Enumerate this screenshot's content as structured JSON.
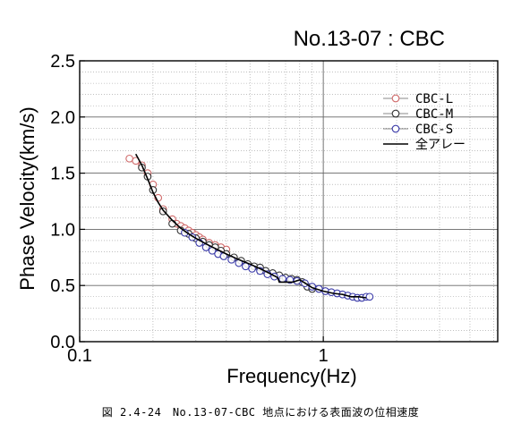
{
  "chart_data": {
    "type": "scatter",
    "title": "No.13-07 : CBC",
    "xlabel": "Frequency(Hz)",
    "ylabel": "Phase Velocity(km/s)",
    "xscale": "log",
    "xlim": [
      0.1,
      5.2
    ],
    "ylim": [
      0.0,
      2.5
    ],
    "x_ticks": [
      {
        "value": 0.1,
        "label": "0.1"
      },
      {
        "value": 1,
        "label": "1"
      }
    ],
    "y_ticks": [
      {
        "value": 0.0,
        "label": "0.0"
      },
      {
        "value": 0.5,
        "label": "0.5"
      },
      {
        "value": 1.0,
        "label": "1.0"
      },
      {
        "value": 1.5,
        "label": "1.5"
      },
      {
        "value": 2.0,
        "label": "2.0"
      },
      {
        "value": 2.5,
        "label": "2.5"
      }
    ],
    "grid": true,
    "legend_position": "top-right",
    "series": [
      {
        "name": "CBC-L",
        "marker": "circle",
        "color": "#d06a6a",
        "points": [
          [
            0.16,
            1.63
          ],
          [
            0.17,
            1.61
          ],
          [
            0.18,
            1.57
          ],
          [
            0.19,
            1.5
          ],
          [
            0.2,
            1.4
          ],
          [
            0.21,
            1.28
          ],
          [
            0.22,
            1.18
          ],
          [
            0.24,
            1.09
          ],
          [
            0.25,
            1.05
          ],
          [
            0.26,
            1.03
          ],
          [
            0.27,
            1.01
          ],
          [
            0.28,
            0.99
          ],
          [
            0.29,
            0.97
          ],
          [
            0.3,
            0.95
          ],
          [
            0.31,
            0.93
          ],
          [
            0.32,
            0.91
          ],
          [
            0.34,
            0.88
          ],
          [
            0.36,
            0.86
          ],
          [
            0.38,
            0.84
          ],
          [
            0.4,
            0.82
          ]
        ]
      },
      {
        "name": "CBC-M",
        "marker": "circle",
        "color": "#333333",
        "points": [
          [
            0.18,
            1.55
          ],
          [
            0.19,
            1.47
          ],
          [
            0.2,
            1.35
          ],
          [
            0.22,
            1.16
          ],
          [
            0.24,
            1.05
          ],
          [
            0.26,
            0.99
          ],
          [
            0.28,
            0.96
          ],
          [
            0.3,
            0.92
          ],
          [
            0.32,
            0.89
          ],
          [
            0.34,
            0.86
          ],
          [
            0.36,
            0.84
          ],
          [
            0.38,
            0.81
          ],
          [
            0.4,
            0.78
          ],
          [
            0.43,
            0.75
          ],
          [
            0.46,
            0.72
          ],
          [
            0.49,
            0.69
          ],
          [
            0.52,
            0.67
          ],
          [
            0.55,
            0.66
          ],
          [
            0.58,
            0.63
          ],
          [
            0.62,
            0.61
          ],
          [
            0.66,
            0.59
          ],
          [
            0.7,
            0.57
          ],
          [
            0.74,
            0.56
          ],
          [
            0.78,
            0.55
          ],
          [
            0.82,
            0.53
          ],
          [
            0.86,
            0.49
          ],
          [
            0.9,
            0.47
          ]
        ]
      },
      {
        "name": "CBC-S",
        "marker": "circle",
        "color": "#3a3aa8",
        "points": [
          [
            0.27,
            0.97
          ],
          [
            0.29,
            0.93
          ],
          [
            0.31,
            0.88
          ],
          [
            0.33,
            0.84
          ],
          [
            0.35,
            0.81
          ],
          [
            0.37,
            0.78
          ],
          [
            0.39,
            0.76
          ],
          [
            0.42,
            0.73
          ],
          [
            0.45,
            0.7
          ],
          [
            0.48,
            0.67
          ],
          [
            0.51,
            0.65
          ],
          [
            0.55,
            0.63
          ],
          [
            0.59,
            0.6
          ],
          [
            0.63,
            0.58
          ],
          [
            0.68,
            0.56
          ],
          [
            0.73,
            0.55
          ],
          [
            0.78,
            0.54
          ],
          [
            0.84,
            0.52
          ],
          [
            0.9,
            0.49
          ],
          [
            0.96,
            0.47
          ],
          [
            1.02,
            0.45
          ],
          [
            1.08,
            0.44
          ],
          [
            1.14,
            0.43
          ],
          [
            1.2,
            0.42
          ],
          [
            1.26,
            0.41
          ],
          [
            1.32,
            0.4
          ],
          [
            1.38,
            0.39
          ],
          [
            1.44,
            0.39
          ],
          [
            1.5,
            0.4
          ],
          [
            1.55,
            0.4
          ]
        ]
      },
      {
        "name": "全アレー",
        "marker": "line",
        "color": "#000000",
        "points": [
          [
            0.17,
            1.67
          ],
          [
            0.18,
            1.57
          ],
          [
            0.19,
            1.45
          ],
          [
            0.2,
            1.33
          ],
          [
            0.21,
            1.24
          ],
          [
            0.22,
            1.17
          ],
          [
            0.24,
            1.08
          ],
          [
            0.26,
            1.01
          ],
          [
            0.28,
            0.96
          ],
          [
            0.3,
            0.92
          ],
          [
            0.33,
            0.87
          ],
          [
            0.36,
            0.83
          ],
          [
            0.4,
            0.78
          ],
          [
            0.45,
            0.73
          ],
          [
            0.5,
            0.69
          ],
          [
            0.55,
            0.65
          ],
          [
            0.6,
            0.61
          ],
          [
            0.65,
            0.57
          ],
          [
            0.66,
            0.53
          ],
          [
            0.75,
            0.53
          ],
          [
            0.8,
            0.55
          ],
          [
            0.83,
            0.53
          ],
          [
            0.9,
            0.48
          ],
          [
            1.0,
            0.45
          ],
          [
            1.1,
            0.43
          ],
          [
            1.2,
            0.42
          ],
          [
            1.3,
            0.4
          ],
          [
            1.4,
            0.4
          ],
          [
            1.5,
            0.39
          ]
        ]
      }
    ]
  },
  "caption": "図 2.4-24　No.13-07-CBC 地点における表面波の位相速度"
}
